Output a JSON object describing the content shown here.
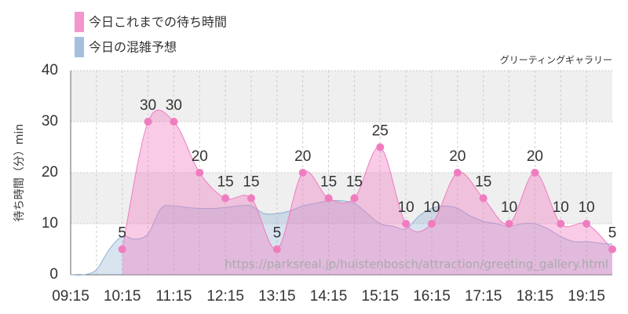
{
  "chart_data": {
    "type": "area",
    "annotation": "グリーティングギャラリー",
    "watermark": "https://parksreal.jp/huistenbosch/attraction/greeting_gallery.html",
    "ylabel": "待ち時間（分）min",
    "xlim": [
      "09:15",
      "19:45"
    ],
    "xticks": [
      "09:15",
      "10:15",
      "11:15",
      "12:15",
      "13:15",
      "14:15",
      "15:15",
      "16:15",
      "17:15",
      "18:15",
      "19:15"
    ],
    "ylim": [
      0,
      40
    ],
    "yticks": [
      0,
      10,
      20,
      30,
      40
    ],
    "grid": true,
    "series": [
      {
        "name": "今日の混雑予想",
        "color": "#8fb0d4",
        "x": [
          "09:15",
          "09:30",
          "09:45",
          "10:00",
          "10:15",
          "10:30",
          "10:45",
          "11:00",
          "11:15",
          "11:30",
          "11:45",
          "12:00",
          "12:15",
          "12:30",
          "12:45",
          "13:00",
          "13:15",
          "13:30",
          "13:45",
          "14:00",
          "14:15",
          "14:30",
          "14:45",
          "15:00",
          "15:15",
          "15:30",
          "15:45",
          "16:00",
          "16:15",
          "16:30",
          "16:45",
          "17:00",
          "17:15",
          "17:30",
          "17:45",
          "18:00",
          "18:15",
          "18:30",
          "18:45",
          "19:00",
          "19:15",
          "19:30",
          "19:45"
        ],
        "values": [
          0,
          0,
          1,
          5,
          7.5,
          7,
          8,
          13,
          13.5,
          13.2,
          13,
          13,
          13.2,
          13.5,
          13.5,
          12,
          12,
          12.5,
          13.5,
          14,
          14.5,
          14.5,
          14,
          12,
          10,
          9.5,
          9,
          11.5,
          13,
          13.5,
          13,
          11.5,
          10.5,
          10,
          9.5,
          10,
          10,
          9,
          7.5,
          6.5,
          6.5,
          6.2,
          6
        ]
      },
      {
        "name": "今日これまでの待ち時間",
        "color": "#f07cc0",
        "x": [
          "10:15",
          "10:45",
          "11:15",
          "11:45",
          "12:15",
          "12:45",
          "13:15",
          "13:45",
          "14:15",
          "14:45",
          "15:15",
          "15:45",
          "16:15",
          "16:45",
          "17:15",
          "17:45",
          "18:15",
          "18:45",
          "19:15",
          "19:45"
        ],
        "values": [
          5,
          30,
          30,
          20,
          15,
          15,
          5,
          20,
          15,
          15,
          25,
          10,
          10,
          20,
          15,
          10,
          20,
          10,
          10,
          5
        ]
      }
    ]
  }
}
